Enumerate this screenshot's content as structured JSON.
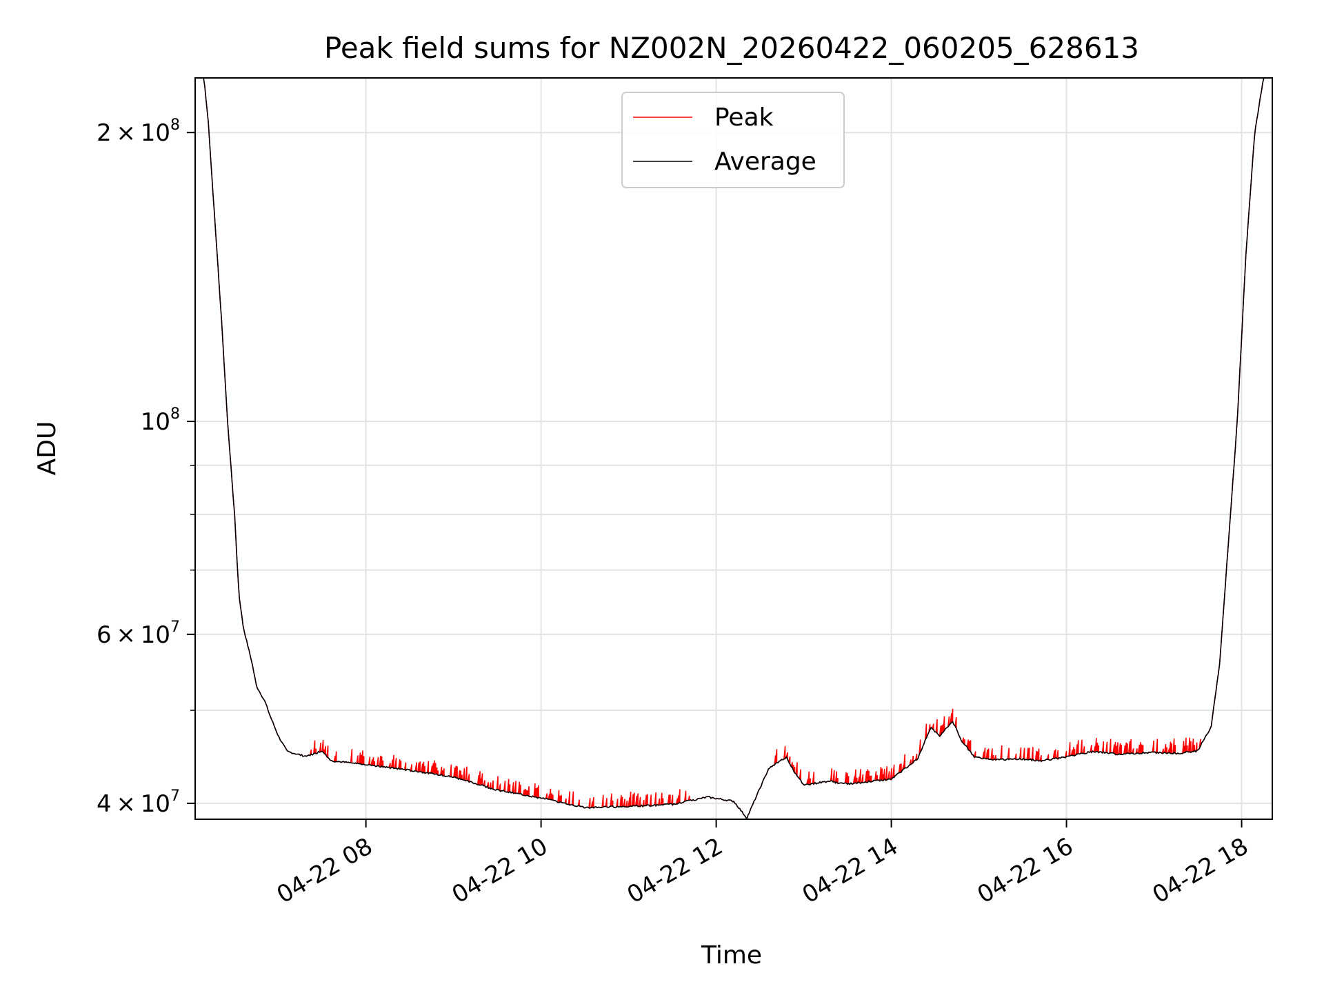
{
  "chart_data": {
    "type": "line",
    "title": "Peak field sums for NZ002N_20260422_060205_628613",
    "xlabel": "Time",
    "ylabel": "ADU",
    "yscale": "log",
    "ylim": [
      38500000,
      228000000
    ],
    "xlim_hours": [
      6.05,
      18.35
    ],
    "grid": true,
    "legend_position": "top-center",
    "x_ticks": [
      {
        "hour": 8,
        "label": "04-22 08"
      },
      {
        "hour": 10,
        "label": "04-22 10"
      },
      {
        "hour": 12,
        "label": "04-22 12"
      },
      {
        "hour": 14,
        "label": "04-22 14"
      },
      {
        "hour": 16,
        "label": "04-22 16"
      },
      {
        "hour": 18,
        "label": "04-22 18"
      }
    ],
    "y_major_ticks": [
      {
        "value": 40000000,
        "mantissa": "4",
        "exponent": "7"
      },
      {
        "value": 60000000,
        "mantissa": "6",
        "exponent": "7"
      },
      {
        "value": 100000000,
        "mantissa": "",
        "exponent": "8"
      },
      {
        "value": 200000000,
        "mantissa": "2",
        "exponent": "8"
      }
    ],
    "y_minor_gridlines": [
      50000000,
      70000000,
      80000000,
      90000000
    ],
    "series": [
      {
        "name": "Peak",
        "color": "#ff0000",
        "spike_windows_hours": [
          [
            7.3,
            11.7
          ],
          [
            12.6,
            17.6
          ]
        ],
        "spike_height_fraction": 0.025
      },
      {
        "name": "Average",
        "color": "#000000",
        "points": [
          [
            6.05,
            230000000
          ],
          [
            6.15,
            228000000
          ],
          [
            6.2,
            205000000
          ],
          [
            6.25,
            175000000
          ],
          [
            6.3,
            150000000
          ],
          [
            6.35,
            128000000
          ],
          [
            6.42,
            100000000
          ],
          [
            6.5,
            80000000
          ],
          [
            6.55,
            66000000
          ],
          [
            6.6,
            61000000
          ],
          [
            6.7,
            56000000
          ],
          [
            6.75,
            53000000
          ],
          [
            6.85,
            51000000
          ],
          [
            6.9,
            49500000
          ],
          [
            7.0,
            47000000
          ],
          [
            7.1,
            45300000
          ],
          [
            7.3,
            44800000
          ],
          [
            7.4,
            45000000
          ],
          [
            7.5,
            45400000
          ],
          [
            7.6,
            44300000
          ],
          [
            8.0,
            43900000
          ],
          [
            8.5,
            43300000
          ],
          [
            9.0,
            42600000
          ],
          [
            9.5,
            41300000
          ],
          [
            10.0,
            40500000
          ],
          [
            10.5,
            39600000
          ],
          [
            11.0,
            39700000
          ],
          [
            11.5,
            39900000
          ],
          [
            11.9,
            40600000
          ],
          [
            12.2,
            40200000
          ],
          [
            12.35,
            38600000
          ],
          [
            12.45,
            40500000
          ],
          [
            12.6,
            43500000
          ],
          [
            12.8,
            44700000
          ],
          [
            12.9,
            43000000
          ],
          [
            13.0,
            41800000
          ],
          [
            13.3,
            42200000
          ],
          [
            13.4,
            42000000
          ],
          [
            13.5,
            41900000
          ],
          [
            14.0,
            42400000
          ],
          [
            14.3,
            44500000
          ],
          [
            14.45,
            48000000
          ],
          [
            14.55,
            47000000
          ],
          [
            14.7,
            48700000
          ],
          [
            14.8,
            46500000
          ],
          [
            14.95,
            44700000
          ],
          [
            15.2,
            44400000
          ],
          [
            15.5,
            44500000
          ],
          [
            15.7,
            44300000
          ],
          [
            16.0,
            44700000
          ],
          [
            16.3,
            45300000
          ],
          [
            16.6,
            45000000
          ],
          [
            17.0,
            45200000
          ],
          [
            17.3,
            45100000
          ],
          [
            17.5,
            45400000
          ],
          [
            17.65,
            48000000
          ],
          [
            17.75,
            56000000
          ],
          [
            17.85,
            75000000
          ],
          [
            17.95,
            100000000
          ],
          [
            18.05,
            150000000
          ],
          [
            18.15,
            200000000
          ],
          [
            18.25,
            228000000
          ],
          [
            18.35,
            230000000
          ]
        ]
      }
    ]
  }
}
